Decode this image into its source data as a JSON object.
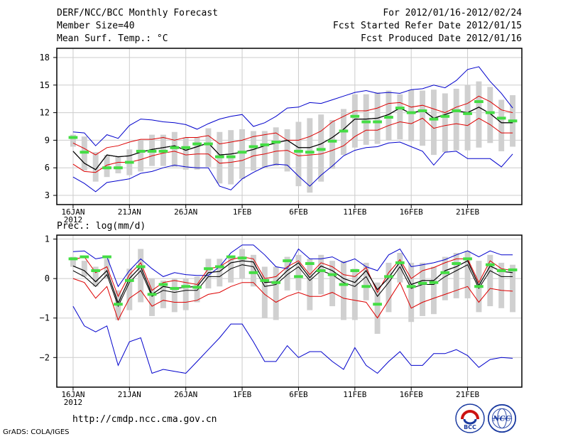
{
  "header": {
    "title": "DERF/NCC/BCC Monthly Forecast",
    "member_size": "Member Size=40",
    "variable": "Mean Surf. Temp.: °C",
    "period": "For 2012/01/16-2012/02/24",
    "fcst_started": "Fcst Started Refer Date 2012/01/15",
    "fcst_produced": "Fcst Produced Date 2012/01/16"
  },
  "footer": {
    "url": "http://cmdp.ncc.cma.gov.cn",
    "grads": "GrADS: COLA/IGES",
    "logo_bcc": "BCC",
    "logo_ncc": "NCC"
  },
  "colors": {
    "envelope": "#0000cc",
    "spread": "#dd0000",
    "mean": "#000000",
    "box": "#d0d0d0",
    "obs": "#44dd44"
  },
  "x_ticks": [
    "16JAN",
    "21JAN",
    "26JAN",
    "1FEB",
    "6FEB",
    "11FEB",
    "16FEB",
    "21FEB"
  ],
  "x_year": "2012",
  "chart_data": [
    {
      "type": "line",
      "title": "Mean Surf. Temp.: °C",
      "ylim": [
        2,
        19
      ],
      "yticks": [
        3,
        6,
        9,
        12,
        15,
        18
      ],
      "ytick_labels": [
        "3",
        "6",
        "9",
        "12",
        "15",
        "18"
      ],
      "days": 40,
      "series": {
        "max": [
          9.9,
          9.8,
          8.4,
          9.6,
          9.2,
          10.6,
          11.3,
          11.2,
          11.0,
          10.9,
          10.7,
          10.2,
          10.8,
          11.3,
          11.6,
          11.8,
          10.5,
          10.9,
          11.6,
          12.5,
          12.6,
          13.1,
          13.0,
          13.4,
          13.8,
          14.2,
          14.4,
          14.1,
          14.2,
          14.1,
          14.5,
          14.6,
          15.0,
          14.7,
          15.5,
          16.7,
          17.0,
          15.4,
          14.1,
          12.5
        ],
        "p75": [
          8.7,
          8.1,
          7.4,
          8.2,
          8.4,
          8.8,
          9.1,
          9.1,
          9.3,
          9.0,
          9.3,
          9.3,
          9.5,
          8.6,
          8.8,
          9.0,
          9.4,
          9.6,
          9.8,
          9.0,
          9.0,
          9.4,
          10.0,
          11.0,
          11.6,
          12.2,
          12.2,
          12.5,
          13.0,
          13.1,
          12.6,
          12.8,
          12.4,
          12.0,
          12.6,
          13.0,
          13.8,
          13.2,
          12.3,
          12.0
        ],
        "mean": [
          7.8,
          6.5,
          5.8,
          7.4,
          7.2,
          7.3,
          7.7,
          8.0,
          8.2,
          8.4,
          7.9,
          8.3,
          8.7,
          7.4,
          7.5,
          7.7,
          8.0,
          8.4,
          8.7,
          9.0,
          8.2,
          8.2,
          8.6,
          9.3,
          10.2,
          11.3,
          11.3,
          11.4,
          11.8,
          12.5,
          11.9,
          12.3,
          11.4,
          11.8,
          12.2,
          12.0,
          12.6,
          11.9,
          10.9,
          10.9
        ],
        "p25": [
          6.4,
          5.6,
          5.5,
          6.3,
          6.6,
          6.6,
          6.9,
          7.3,
          7.6,
          7.8,
          7.4,
          7.5,
          7.5,
          6.5,
          6.6,
          6.8,
          7.3,
          7.5,
          7.8,
          7.9,
          7.3,
          7.4,
          7.5,
          7.9,
          8.4,
          9.4,
          10.1,
          10.1,
          10.6,
          11.0,
          10.8,
          11.4,
          10.3,
          10.6,
          10.8,
          10.6,
          11.4,
          10.7,
          9.8,
          9.8
        ],
        "min": [
          5.0,
          4.3,
          3.4,
          4.4,
          4.6,
          4.8,
          5.4,
          5.6,
          6.0,
          6.3,
          6.1,
          6.0,
          6.0,
          4.0,
          3.6,
          4.8,
          5.5,
          6.1,
          6.4,
          6.3,
          5.1,
          4.0,
          5.2,
          6.2,
          7.3,
          7.9,
          8.2,
          8.3,
          8.7,
          8.8,
          8.3,
          7.8,
          6.3,
          7.7,
          7.8,
          7.0,
          7.0,
          7.0,
          6.1,
          7.5
        ],
        "box_hi": [
          9.6,
          9.4,
          7.7,
          7.4,
          7.3,
          8.0,
          9.0,
          9.6,
          9.6,
          9.9,
          9.3,
          9.3,
          10.3,
          9.9,
          10.1,
          10.2,
          10.0,
          10.0,
          10.4,
          10.2,
          11.0,
          11.4,
          11.8,
          11.2,
          12.4,
          14.0,
          14.0,
          14.2,
          14.4,
          14.0,
          14.5,
          14.4,
          14.5,
          14.1,
          14.6,
          15.0,
          15.4,
          14.8,
          13.4,
          13.9
        ],
        "box_lo": [
          8.3,
          5.7,
          4.5,
          5.0,
          5.4,
          5.2,
          5.6,
          6.2,
          6.2,
          6.1,
          5.8,
          5.8,
          6.1,
          4.3,
          4.2,
          4.8,
          5.7,
          6.0,
          6.2,
          5.6,
          4.0,
          3.3,
          4.5,
          5.9,
          7.4,
          8.2,
          8.5,
          8.6,
          9.0,
          9.1,
          8.9,
          8.4,
          7.4,
          7.7,
          7.9,
          7.9,
          8.2,
          8.7,
          7.8,
          8.3
        ],
        "obs": [
          9.3,
          7.7,
          null,
          6.0,
          6.0,
          6.6,
          7.8,
          7.8,
          7.8,
          8.2,
          8.2,
          8.6,
          8.6,
          7.2,
          7.2,
          7.7,
          8.3,
          8.5,
          8.8,
          null,
          7.8,
          7.7,
          8.0,
          8.9,
          10.0,
          11.6,
          11.0,
          11.0,
          11.5,
          12.5,
          12.0,
          12.2,
          11.3,
          11.6,
          12.2,
          11.9,
          13.2,
          12.0,
          11.4,
          11.1
        ]
      }
    },
    {
      "type": "line",
      "title": "Prec.: log(mm/d)",
      "ylim": [
        -2.75,
        1.1
      ],
      "yticks": [
        -2,
        -1,
        0,
        1
      ],
      "ytick_labels": [
        "−2",
        "−1",
        "0",
        "1"
      ],
      "days": 40,
      "series": {
        "max": [
          0.68,
          0.7,
          0.5,
          0.55,
          -0.2,
          0.2,
          0.5,
          0.25,
          0.05,
          0.15,
          0.1,
          0.08,
          0.08,
          0.3,
          0.65,
          0.85,
          0.85,
          0.6,
          0.3,
          0.25,
          0.75,
          0.5,
          0.5,
          0.55,
          0.4,
          0.5,
          0.3,
          0.2,
          0.6,
          0.75,
          0.3,
          0.35,
          0.4,
          0.48,
          0.6,
          0.7,
          0.55,
          0.7,
          0.6,
          0.6
        ],
        "p75": [
          0.48,
          0.55,
          0.15,
          0.3,
          -0.45,
          0.1,
          0.4,
          -0.3,
          -0.1,
          -0.05,
          -0.1,
          -0.15,
          0.25,
          0.3,
          0.48,
          0.55,
          0.5,
          0.0,
          0.05,
          0.3,
          0.45,
          0.1,
          0.4,
          0.3,
          0.1,
          0.05,
          0.28,
          -0.35,
          0.15,
          0.48,
          0.0,
          0.2,
          0.28,
          0.4,
          0.5,
          0.5,
          -0.1,
          0.45,
          0.25,
          0.2
        ],
        "mean": [
          0.32,
          0.2,
          -0.08,
          0.2,
          -0.62,
          0.0,
          0.3,
          -0.4,
          -0.2,
          -0.25,
          -0.22,
          -0.2,
          0.15,
          0.18,
          0.4,
          0.45,
          0.42,
          -0.1,
          -0.08,
          0.2,
          0.4,
          0.02,
          0.32,
          0.2,
          0.0,
          -0.1,
          0.2,
          -0.28,
          0.02,
          0.42,
          -0.15,
          -0.05,
          -0.05,
          0.2,
          0.3,
          0.45,
          -0.18,
          0.32,
          0.18,
          0.15
        ],
        "p25": [
          0.2,
          0.05,
          -0.2,
          0.1,
          -0.7,
          -0.1,
          0.2,
          -0.45,
          -0.3,
          -0.35,
          -0.3,
          -0.3,
          0.05,
          0.05,
          0.25,
          0.35,
          0.3,
          -0.2,
          -0.15,
          0.1,
          0.3,
          -0.05,
          0.2,
          0.1,
          -0.1,
          -0.2,
          0.05,
          -0.45,
          -0.1,
          0.3,
          -0.25,
          -0.15,
          -0.15,
          0.05,
          0.2,
          0.35,
          -0.25,
          0.2,
          0.05,
          0.05
        ],
        "min": [
          0.0,
          -0.1,
          -0.5,
          -0.2,
          -1.05,
          -0.5,
          -0.3,
          -0.7,
          -0.55,
          -0.6,
          -0.6,
          -0.55,
          -0.4,
          -0.35,
          -0.2,
          -0.1,
          -0.1,
          -0.4,
          -0.6,
          -0.45,
          -0.35,
          -0.45,
          -0.45,
          -0.35,
          -0.5,
          -0.55,
          -0.6,
          -1.0,
          -0.55,
          -0.1,
          -0.75,
          -0.6,
          -0.5,
          -0.4,
          -0.3,
          -0.2,
          -0.6,
          -0.25,
          -0.3,
          -0.32
        ],
        "lower": [
          -0.7,
          -1.2,
          -1.35,
          -1.2,
          -2.2,
          -1.6,
          -1.5,
          -2.4,
          -2.3,
          -2.35,
          -2.4,
          -2.1,
          -1.8,
          -1.5,
          -1.15,
          -1.15,
          -1.6,
          -2.1,
          -2.1,
          -1.7,
          -2.0,
          -1.85,
          -1.85,
          -2.1,
          -2.3,
          -1.75,
          -2.2,
          -2.4,
          -2.1,
          -1.85,
          -2.2,
          -2.2,
          -1.9,
          -1.9,
          -1.8,
          -1.95,
          -2.25,
          -2.05,
          -2.0,
          -2.02
        ],
        "box_hi": [
          0.55,
          0.45,
          0.3,
          0.5,
          -0.3,
          0.25,
          0.75,
          0.0,
          -0.05,
          0.0,
          0.0,
          0.05,
          0.5,
          0.5,
          0.55,
          0.75,
          0.6,
          0.3,
          0.3,
          0.55,
          0.6,
          0.5,
          0.6,
          0.45,
          0.45,
          0.25,
          0.4,
          -0.1,
          0.4,
          0.65,
          0.4,
          0.4,
          0.3,
          0.55,
          0.65,
          0.7,
          0.45,
          0.6,
          0.4,
          0.35
        ],
        "box_lo": [
          0.3,
          0.05,
          -0.2,
          0.0,
          -1.05,
          -0.8,
          -0.6,
          -0.95,
          -0.75,
          -0.85,
          -0.8,
          -0.6,
          -0.25,
          -0.2,
          -0.1,
          0.0,
          -0.2,
          -1.0,
          -1.05,
          -0.3,
          -0.3,
          -0.8,
          -0.4,
          -0.7,
          -1.05,
          -1.05,
          -0.55,
          -1.4,
          -0.85,
          -0.1,
          -1.1,
          -0.95,
          -0.9,
          -0.55,
          -0.5,
          -0.5,
          -0.85,
          -0.7,
          -0.75,
          -0.85
        ],
        "obs": [
          0.5,
          0.55,
          0.2,
          0.55,
          -0.65,
          -0.05,
          0.3,
          -0.4,
          -0.15,
          -0.25,
          -0.2,
          -0.22,
          0.25,
          0.3,
          0.55,
          0.52,
          0.15,
          -0.05,
          -0.1,
          0.45,
          0.05,
          0.38,
          0.2,
          0.1,
          -0.15,
          0.2,
          -0.2,
          -0.65,
          0.05,
          0.4,
          -0.2,
          -0.12,
          -0.1,
          0.15,
          0.38,
          0.5,
          -0.2,
          0.35,
          0.2,
          0.22
        ]
      }
    }
  ]
}
